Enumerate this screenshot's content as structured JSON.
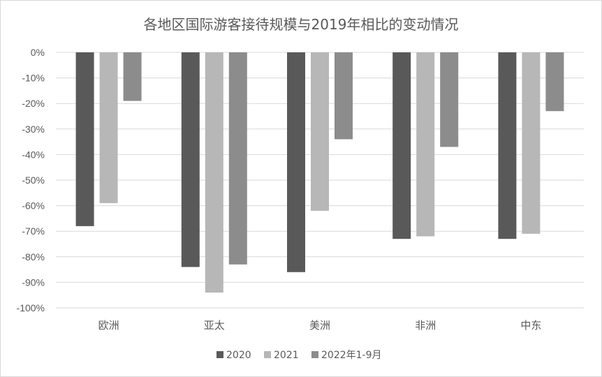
{
  "chart_data": {
    "type": "bar",
    "title": "各地区国际游客接待规模与2019年相比的变动情况",
    "categories": [
      "欧洲",
      "亚太",
      "美洲",
      "非洲",
      "中东"
    ],
    "series": [
      {
        "name": "2020",
        "color": "#595959",
        "values": [
          -68,
          -84,
          -86,
          -73,
          -73
        ]
      },
      {
        "name": "2021",
        "color": "#b7b7b7",
        "values": [
          -59,
          -94,
          -62,
          -72,
          -71
        ]
      },
      {
        "name": "2022年1-9月",
        "color": "#8c8c8c",
        "values": [
          -19,
          -83,
          -34,
          -37,
          -23
        ]
      }
    ],
    "ylim": [
      -100,
      0
    ],
    "yticks": [
      "0%",
      "-10%",
      "-20%",
      "-30%",
      "-40%",
      "-50%",
      "-60%",
      "-70%",
      "-80%",
      "-90%",
      "-100%"
    ],
    "grid": true,
    "legend_position": "bottom"
  }
}
